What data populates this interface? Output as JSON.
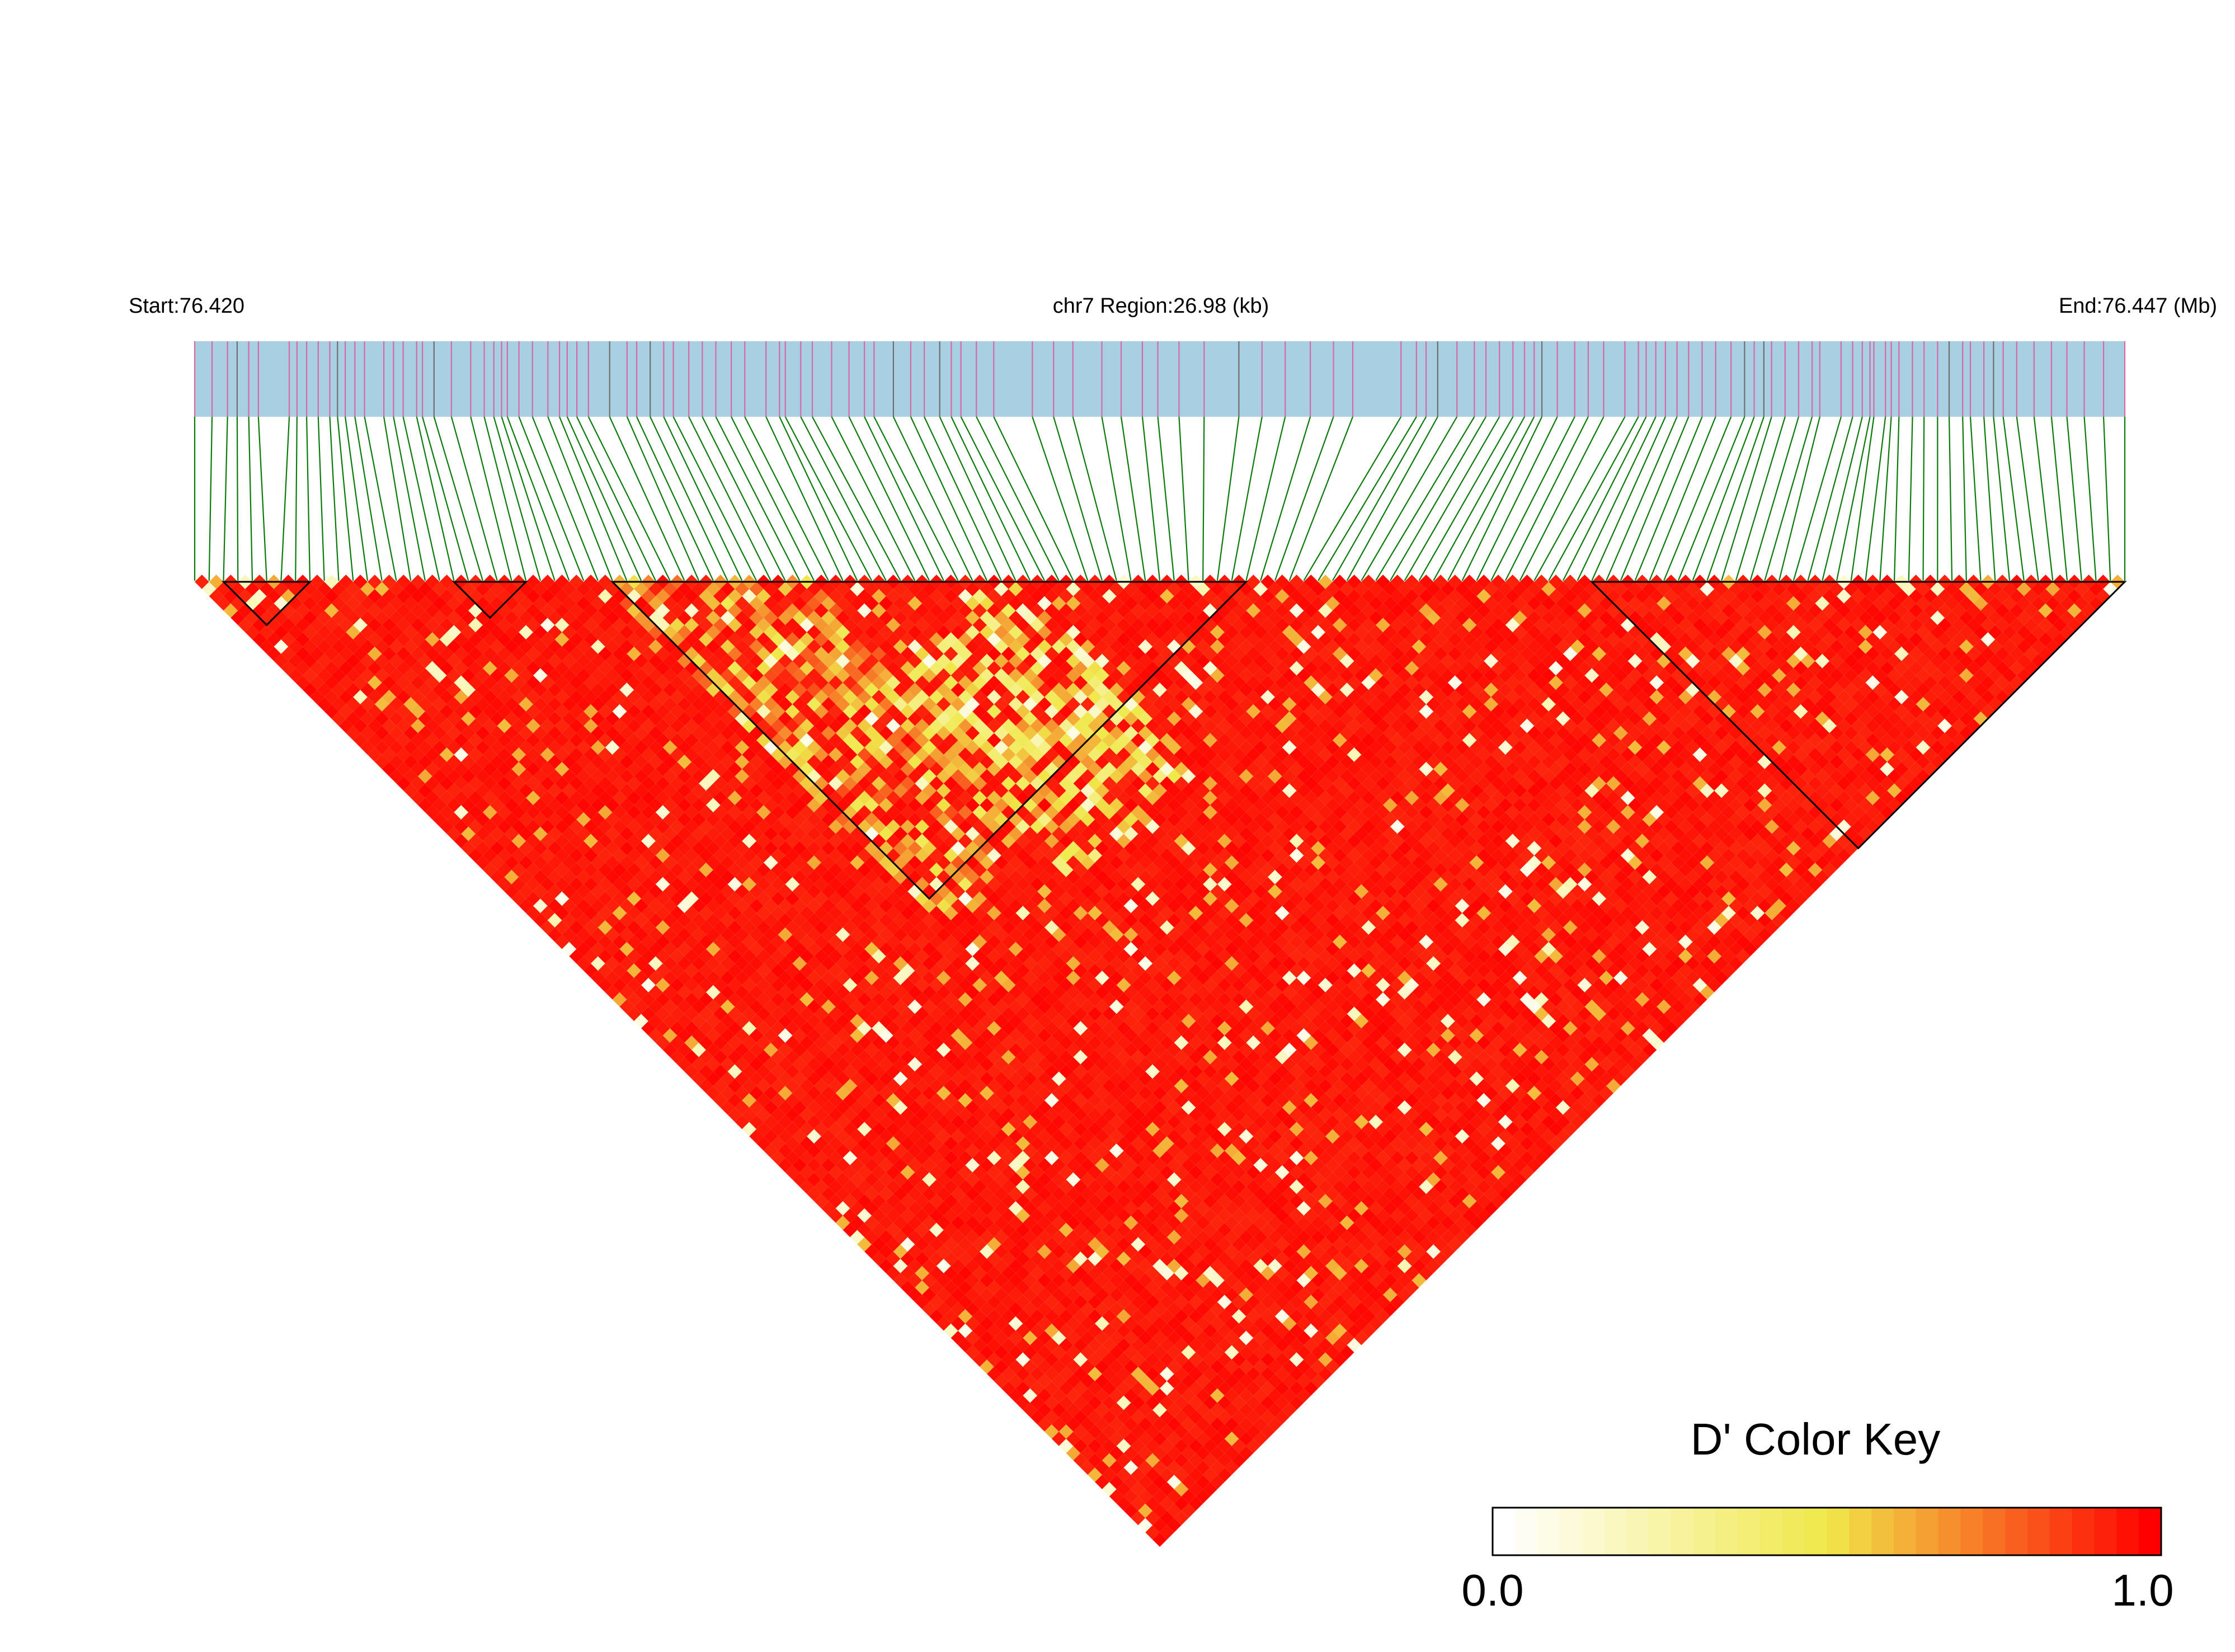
{
  "chart_data": {
    "type": "heatmap",
    "subtype": "linkage-disequilibrium-triangle",
    "region": {
      "start_label": "Start:76.420",
      "end_label": "End:76.447 (Mb)",
      "center_label": "chr7 Region:26.98 (kb)",
      "chromosome": "chr7",
      "start_mb": 76.42,
      "end_mb": 76.447,
      "length_kb": 26.98
    },
    "snp_count": 135,
    "snp_positions_fraction": [
      0.0,
      0.009,
      0.017,
      0.022,
      0.028,
      0.033,
      0.049,
      0.053,
      0.058,
      0.064,
      0.07,
      0.074,
      0.078,
      0.083,
      0.088,
      0.098,
      0.103,
      0.108,
      0.115,
      0.118,
      0.124,
      0.133,
      0.143,
      0.15,
      0.155,
      0.159,
      0.162,
      0.168,
      0.175,
      0.183,
      0.189,
      0.193,
      0.198,
      0.204,
      0.215,
      0.224,
      0.229,
      0.236,
      0.243,
      0.248,
      0.256,
      0.263,
      0.27,
      0.278,
      0.285,
      0.296,
      0.303,
      0.306,
      0.314,
      0.32,
      0.33,
      0.339,
      0.347,
      0.352,
      0.362,
      0.371,
      0.378,
      0.386,
      0.392,
      0.397,
      0.405,
      0.414,
      0.434,
      0.445,
      0.455,
      0.47,
      0.48,
      0.491,
      0.499,
      0.51,
      0.523,
      0.541,
      0.553,
      0.565,
      0.578,
      0.59,
      0.6,
      0.625,
      0.633,
      0.638,
      0.644,
      0.654,
      0.663,
      0.669,
      0.676,
      0.683,
      0.689,
      0.694,
      0.698,
      0.706,
      0.715,
      0.722,
      0.73,
      0.741,
      0.748,
      0.752,
      0.757,
      0.762,
      0.768,
      0.774,
      0.781,
      0.788,
      0.796,
      0.803,
      0.808,
      0.813,
      0.817,
      0.824,
      0.831,
      0.838,
      0.842,
      0.853,
      0.859,
      0.864,
      0.868,
      0.87,
      0.876,
      0.879,
      0.883,
      0.89,
      0.896,
      0.903,
      0.909,
      0.916,
      0.92,
      0.927,
      0.932,
      0.937,
      0.944,
      0.953,
      0.962,
      0.97,
      0.979,
      0.989,
      1.0
    ],
    "ld_blocks": [
      {
        "first_snp": 2,
        "last_snp": 8
      },
      {
        "first_snp": 18,
        "last_snp": 23
      },
      {
        "first_snp": 29,
        "last_snp": 73
      },
      {
        "first_snp": 97,
        "last_snp": 134
      }
    ],
    "pattern": {
      "base_value": 0.95,
      "low_zones": [
        {
          "i_range": [
            28,
            42
          ],
          "j_range": [
            28,
            75
          ],
          "value": 0.45
        },
        {
          "i_range": [
            40,
            56
          ],
          "j_range": [
            56,
            82
          ],
          "value": 0.3
        }
      ]
    },
    "color_key": {
      "title": "D' Color Key",
      "min_label": "0.0",
      "max_label": "1.0",
      "min": 0.0,
      "max": 1.0,
      "colors": [
        "#ffffff",
        "#f0e84a",
        "#ff0000"
      ],
      "steps": 30
    },
    "colors": {
      "track_fill": "#a9cfe2",
      "snp_tick": "#d66aa6",
      "snp_tick_alt": "#6f6f6f",
      "connector": "#0a7a0a",
      "block_outline": "#000000"
    }
  }
}
